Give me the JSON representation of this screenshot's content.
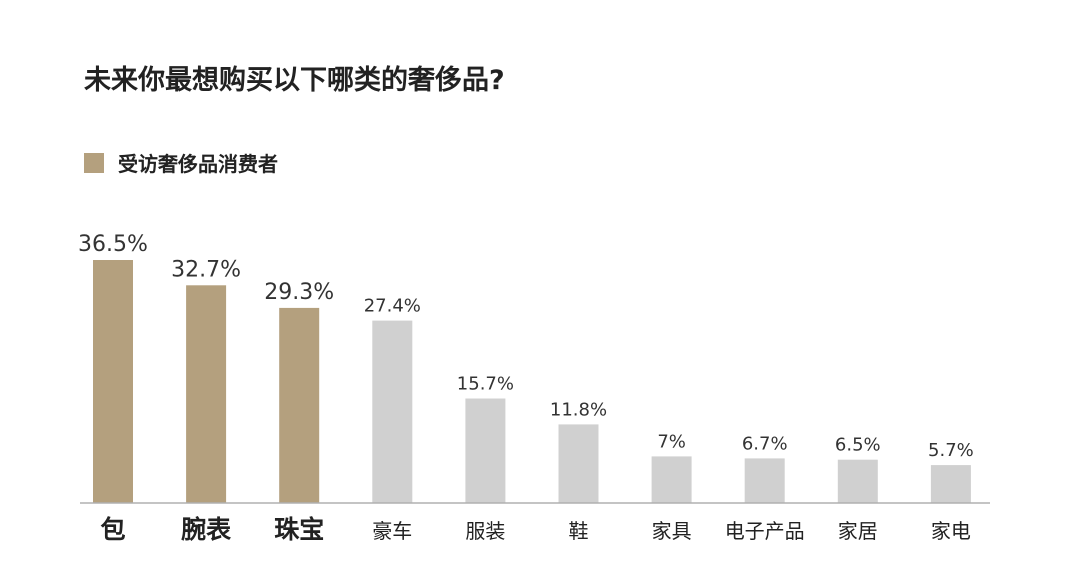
{
  "title": "未来你最想购买以下哪类的奢侈品?",
  "legend": {
    "label": "受访奢侈品消费者",
    "color": "#b4a07e"
  },
  "colors": {
    "highlight": "#b4a07e",
    "other": "#d0d0d0",
    "axis": "#b0b0b0"
  },
  "chart_data": {
    "type": "bar",
    "categories": [
      "包",
      "腕表",
      "珠宝",
      "豪车",
      "服装",
      "鞋",
      "家具",
      "电子产品",
      "家居",
      "家电"
    ],
    "series": [
      {
        "name": "受访奢侈品消费者",
        "values": [
          36.5,
          32.7,
          29.3,
          27.4,
          15.7,
          11.8,
          7,
          6.7,
          6.5,
          5.7
        ]
      }
    ],
    "data_labels": [
      "36.5%",
      "32.7%",
      "29.3%",
      "27.4%",
      "15.7%",
      "11.8%",
      "7%",
      "6.7%",
      "6.5%",
      "5.7%"
    ],
    "highlighted": [
      true,
      true,
      true,
      false,
      false,
      false,
      false,
      false,
      false,
      false
    ],
    "title": "未来你最想购买以下哪类的奢侈品?",
    "xlabel": "",
    "ylabel": "",
    "ylim": [
      0,
      36.5
    ],
    "grid": false,
    "legend_position": "top-left"
  }
}
